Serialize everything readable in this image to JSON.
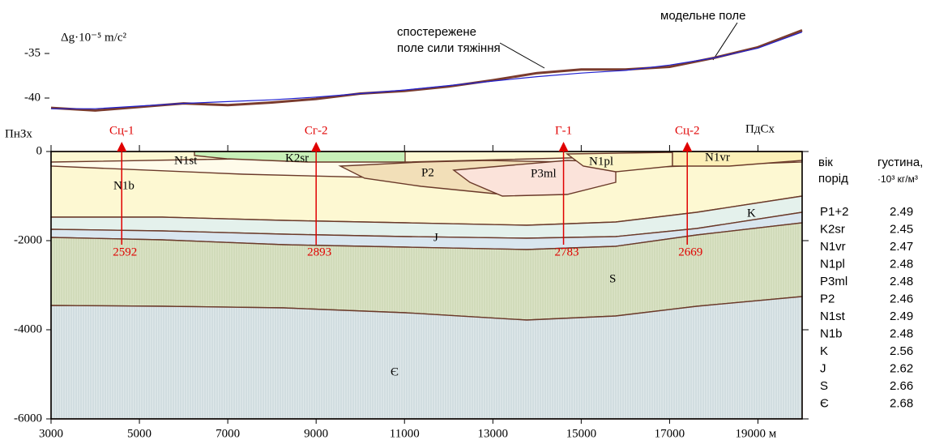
{
  "chart_data": [
    {
      "type": "line",
      "y_label": "Δg·10⁻⁵ m/c²",
      "x": [
        3000,
        4000,
        5000,
        6000,
        7000,
        8000,
        9000,
        10000,
        11000,
        12000,
        13000,
        14000,
        15000,
        16000,
        17000,
        18000,
        19000,
        20000
      ],
      "series": [
        {
          "name": "спостережене поле сили тяжіння",
          "color": "#7a3b2e",
          "values": [
            -41.1,
            -41.4,
            -41.0,
            -40.6,
            -40.8,
            -40.5,
            -40.1,
            -39.5,
            -39.2,
            -38.7,
            -38.0,
            -37.2,
            -36.8,
            -36.8,
            -36.5,
            -35.5,
            -34.3,
            -32.4
          ]
        },
        {
          "name": "модельне поле",
          "color": "#2020d0",
          "values": [
            -41.2,
            -41.2,
            -40.9,
            -40.6,
            -40.4,
            -40.2,
            -39.9,
            -39.5,
            -39.1,
            -38.6,
            -38.1,
            -37.6,
            -37.2,
            -36.9,
            -36.3,
            -35.5,
            -34.4,
            -32.6
          ]
        }
      ],
      "xlim": [
        3000,
        20000
      ],
      "ylim": [
        -44,
        -32
      ],
      "yticks": [
        -35,
        -40
      ]
    },
    {
      "type": "section",
      "left_label": "ПнЗх",
      "right_label": "ПдСх",
      "xlim": [
        3000,
        20000
      ],
      "xticks": [
        3000,
        5000,
        7000,
        9000,
        11000,
        13000,
        15000,
        17000,
        {
          "value": 19000,
          "label": "19000 м"
        }
      ],
      "ylim": [
        -6000,
        0
      ],
      "yticks": [
        0,
        -2000,
        -4000,
        -6000
      ],
      "wells": [
        {
          "name": "Сц-1",
          "x": 4600,
          "label": 2592
        },
        {
          "name": "Сг-2",
          "x": 9000,
          "label": 2893
        },
        {
          "name": "Г-1",
          "x": 14600,
          "label": 2783
        },
        {
          "name": "Сц-2",
          "x": 17400,
          "label": 2669
        }
      ],
      "layers": [
        "N1b",
        "N1st",
        "K2sr",
        "P2",
        "P3ml",
        "N1pl",
        "N1vr",
        "K",
        "J",
        "S",
        "Є"
      ]
    }
  ],
  "density_table": {
    "header": [
      "вік порід",
      "густина, ·10³ кг/м³"
    ],
    "rows": [
      [
        "P1+2",
        2.49
      ],
      [
        "K2sr",
        2.45
      ],
      [
        "N1vr",
        2.47
      ],
      [
        "N1pl",
        2.48
      ],
      [
        "P3ml",
        2.48
      ],
      [
        "P2",
        2.46
      ],
      [
        "N1st",
        2.49
      ],
      [
        "N1b",
        2.48
      ],
      [
        "K",
        2.56
      ],
      [
        "J",
        2.62
      ],
      [
        "S",
        2.66
      ],
      [
        "Є",
        2.68
      ]
    ]
  }
}
